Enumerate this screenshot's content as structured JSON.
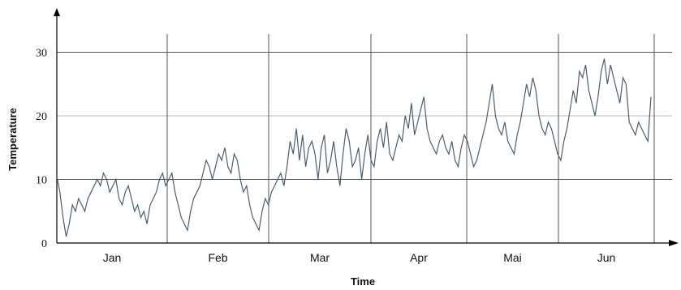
{
  "chart_data": {
    "type": "line",
    "xlabel": "Time",
    "ylabel": "Temperature",
    "y_ticks": [
      0,
      10,
      20,
      30
    ],
    "ylim": [
      0,
      33
    ],
    "months": [
      "Jan",
      "Feb",
      "Mar",
      "Apr",
      "Mai",
      "Jun"
    ],
    "x_range_days": [
      0,
      181
    ],
    "grid": "vertical lines at month boundaries; horizontal lines at 10, 20, 30",
    "series": [
      {
        "color": "#4a5e72",
        "description": "daily temperature, approx. values per day",
        "values": [
          10.5,
          8,
          4,
          1,
          3,
          6,
          5,
          7,
          6,
          5,
          7,
          8,
          9,
          10,
          9,
          11,
          10,
          8,
          9,
          10,
          7,
          6,
          8,
          9,
          7,
          5,
          6,
          4,
          5,
          3,
          6,
          7,
          8,
          10,
          11,
          9,
          10,
          11,
          8,
          6,
          4,
          3,
          2,
          5,
          7,
          8,
          9,
          11,
          13,
          12,
          10,
          12,
          14,
          13,
          15,
          12,
          11,
          14,
          13,
          10,
          8,
          9,
          6,
          4,
          3,
          2,
          5,
          7,
          6,
          8,
          9,
          10,
          11,
          9,
          12,
          16,
          14,
          18,
          13,
          17,
          12,
          15,
          16,
          14,
          10,
          15,
          17,
          11,
          13,
          16,
          12,
          9,
          14,
          18,
          16,
          12,
          13,
          15,
          10,
          14,
          17,
          13,
          12,
          16,
          18,
          15,
          19,
          14,
          13,
          15,
          17,
          16,
          20,
          18,
          22,
          17,
          19,
          21,
          23,
          18,
          16,
          15,
          14,
          16,
          17,
          15,
          14,
          16,
          13,
          12,
          15,
          17,
          16,
          14,
          12,
          13,
          15,
          17,
          19,
          22,
          25,
          20,
          18,
          17,
          19,
          16,
          15,
          14,
          17,
          19,
          22,
          25,
          23,
          26,
          24,
          20,
          18,
          17,
          19,
          18,
          16,
          14,
          13,
          16,
          18,
          21,
          24,
          22,
          27,
          26,
          28,
          24,
          22,
          20,
          23,
          27,
          29,
          25,
          28,
          26,
          24,
          22,
          26,
          25,
          19,
          18,
          17,
          19,
          18,
          17,
          16,
          23
        ]
      }
    ]
  }
}
